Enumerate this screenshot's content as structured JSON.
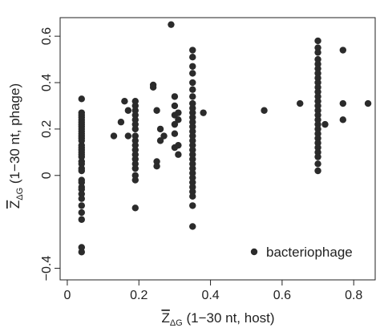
{
  "chart_data": {
    "type": "scatter",
    "xlabel": {
      "main": "Z",
      "sub": "ΔG",
      "rest": " (1−30 nt, host)"
    },
    "ylabel": {
      "main": "Z",
      "sub": "ΔG",
      "rest": " (1−30 nt, phage)"
    },
    "xlim": [
      -0.02,
      0.86
    ],
    "ylim": [
      -0.45,
      0.68
    ],
    "x_ticks": [
      0,
      0.2,
      0.4,
      0.6,
      0.8
    ],
    "x_tick_labels": [
      "0",
      "0.2",
      "0.4",
      "0.6",
      "0.8"
    ],
    "y_ticks": [
      -0.4,
      0,
      0.2,
      0.4,
      0.6
    ],
    "y_tick_labels": [
      "−0.4",
      "0",
      "0.2",
      "0.4",
      "0.6"
    ],
    "grid": false,
    "legend_position": "bottom-right",
    "point_color": "#2b2b2b",
    "series": [
      {
        "name": "bacteriophage",
        "x": [
          0.04,
          0.04,
          0.04,
          0.04,
          0.04,
          0.04,
          0.04,
          0.04,
          0.04,
          0.04,
          0.04,
          0.04,
          0.04,
          0.04,
          0.04,
          0.04,
          0.04,
          0.04,
          0.04,
          0.04,
          0.04,
          0.04,
          0.04,
          0.04,
          0.04,
          0.04,
          0.04,
          0.04,
          0.04,
          0.04,
          0.04,
          0.04,
          0.04,
          0.04,
          0.04,
          0.13,
          0.15,
          0.16,
          0.17,
          0.17,
          0.19,
          0.19,
          0.19,
          0.19,
          0.19,
          0.19,
          0.19,
          0.19,
          0.19,
          0.19,
          0.19,
          0.19,
          0.19,
          0.19,
          0.19,
          0.19,
          0.19,
          0.19,
          0.24,
          0.24,
          0.25,
          0.25,
          0.25,
          0.26,
          0.26,
          0.27,
          0.29,
          0.3,
          0.3,
          0.3,
          0.3,
          0.3,
          0.3,
          0.31,
          0.31,
          0.31,
          0.31,
          0.35,
          0.35,
          0.35,
          0.35,
          0.35,
          0.35,
          0.35,
          0.35,
          0.35,
          0.35,
          0.35,
          0.35,
          0.35,
          0.35,
          0.35,
          0.35,
          0.35,
          0.35,
          0.35,
          0.35,
          0.35,
          0.35,
          0.35,
          0.35,
          0.35,
          0.35,
          0.35,
          0.35,
          0.35,
          0.35,
          0.38,
          0.55,
          0.65,
          0.7,
          0.7,
          0.7,
          0.7,
          0.7,
          0.7,
          0.7,
          0.7,
          0.7,
          0.7,
          0.7,
          0.7,
          0.7,
          0.7,
          0.7,
          0.7,
          0.7,
          0.7,
          0.7,
          0.7,
          0.7,
          0.7,
          0.7,
          0.7,
          0.7,
          0.7,
          0.7,
          0.72,
          0.77,
          0.77,
          0.77,
          0.84
        ],
        "y": [
          0.33,
          0.27,
          0.26,
          0.25,
          0.24,
          0.23,
          0.22,
          0.21,
          0.2,
          0.19,
          0.18,
          0.17,
          0.16,
          0.15,
          0.13,
          0.12,
          0.11,
          0.1,
          0.09,
          0.08,
          0.06,
          0.05,
          0.03,
          0.02,
          -0.02,
          -0.03,
          -0.05,
          -0.06,
          -0.08,
          -0.1,
          -0.13,
          -0.16,
          -0.19,
          -0.31,
          -0.33,
          0.17,
          0.23,
          0.32,
          0.17,
          0.28,
          0.32,
          0.3,
          0.28,
          0.26,
          0.24,
          0.22,
          0.2,
          0.17,
          0.15,
          0.13,
          0.11,
          0.09,
          0.07,
          0.05,
          0.03,
          0.0,
          -0.02,
          -0.14,
          0.39,
          0.38,
          0.28,
          0.06,
          0.04,
          0.2,
          0.15,
          0.17,
          0.65,
          0.34,
          0.3,
          0.26,
          0.22,
          0.18,
          0.12,
          0.27,
          0.24,
          0.09,
          0.13,
          0.54,
          0.51,
          0.47,
          0.44,
          0.4,
          0.37,
          0.34,
          0.31,
          0.29,
          0.27,
          0.25,
          0.23,
          0.21,
          0.19,
          0.17,
          0.15,
          0.13,
          0.11,
          0.09,
          0.07,
          0.05,
          0.03,
          0.01,
          -0.01,
          -0.03,
          -0.05,
          -0.07,
          -0.09,
          -0.13,
          -0.22,
          0.27,
          0.28,
          0.31,
          0.58,
          0.55,
          0.53,
          0.5,
          0.48,
          0.46,
          0.44,
          0.42,
          0.4,
          0.38,
          0.36,
          0.34,
          0.32,
          0.3,
          0.28,
          0.26,
          0.24,
          0.22,
          0.2,
          0.18,
          0.16,
          0.14,
          0.12,
          0.1,
          0.08,
          0.05,
          0.02,
          0.22,
          0.54,
          0.31,
          0.24,
          0.31
        ]
      }
    ]
  }
}
